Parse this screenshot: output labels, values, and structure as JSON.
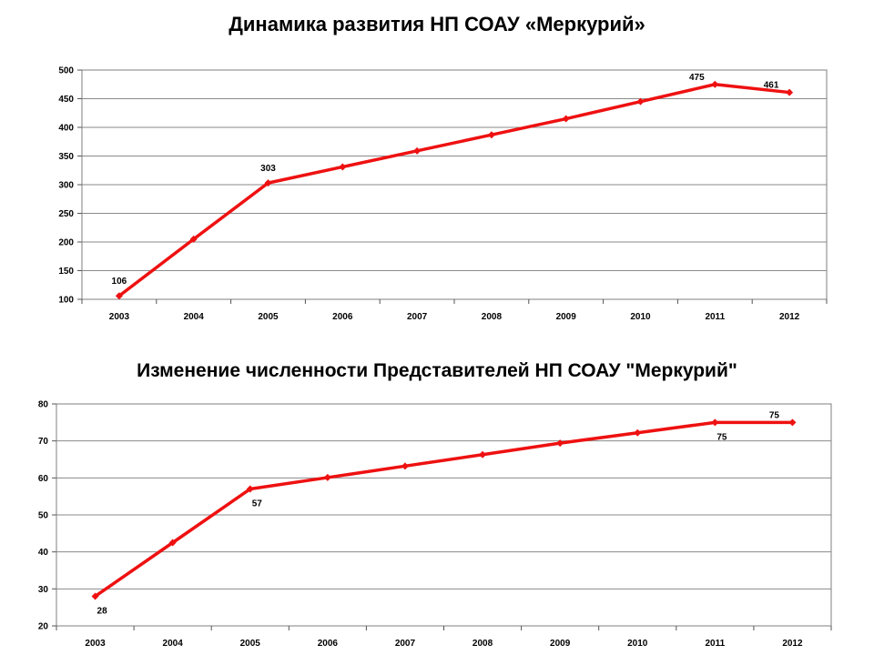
{
  "chart_data": [
    {
      "type": "line",
      "title": "Динамика развития НП СОАУ «Меркурий»",
      "xlabel": "",
      "ylabel": "",
      "categories": [
        "2003",
        "2004",
        "2005",
        "2006",
        "2007",
        "2008",
        "2009",
        "2010",
        "2011",
        "2012"
      ],
      "series": [
        {
          "values": [
            106,
            205,
            303,
            331,
            359,
            387,
            415,
            445,
            475,
            461
          ]
        }
      ],
      "point_labels": [
        {
          "index": 0,
          "text": "106",
          "position": "above"
        },
        {
          "index": 2,
          "text": "303",
          "position": "above"
        },
        {
          "index": 8,
          "text": "475",
          "position": "above-left"
        },
        {
          "index": 9,
          "text": "461",
          "position": "above-left"
        }
      ],
      "ylim": [
        100,
        500
      ],
      "yticks": [
        100,
        150,
        200,
        250,
        300,
        350,
        400,
        450,
        500
      ],
      "grid": true,
      "line_color": "#ee1111"
    },
    {
      "type": "line",
      "title": "Изменение численности Представителей НП СОАУ \"Меркурий\"",
      "xlabel": "",
      "ylabel": "",
      "categories": [
        "2003",
        "2004",
        "2005",
        "2006",
        "2007",
        "2008",
        "2009",
        "2010",
        "2011",
        "2012"
      ],
      "series": [
        {
          "values": [
            28,
            42.5,
            57,
            60.1,
            63.2,
            66.3,
            69.4,
            72.2,
            75,
            75
          ]
        }
      ],
      "point_labels": [
        {
          "index": 0,
          "text": "28",
          "position": "below-right"
        },
        {
          "index": 2,
          "text": "57",
          "position": "below-right"
        },
        {
          "index": 8,
          "text": "75",
          "position": "below-right"
        },
        {
          "index": 9,
          "text": "75",
          "position": "above-left"
        }
      ],
      "ylim": [
        20,
        80
      ],
      "yticks": [
        20,
        30,
        40,
        50,
        60,
        70,
        80
      ],
      "grid": true,
      "line_color": "#ee1111"
    }
  ]
}
